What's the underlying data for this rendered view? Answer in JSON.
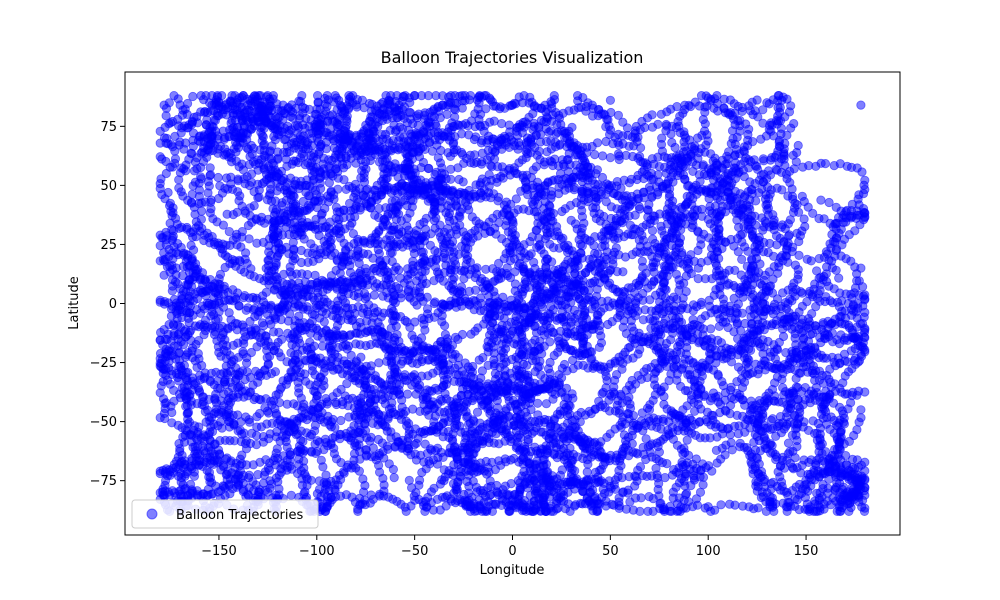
{
  "chart_data": {
    "type": "scatter",
    "title": "Balloon Trajectories Visualization",
    "xlabel": "Longitude",
    "ylabel": "Latitude",
    "xlim": [
      -198,
      198
    ],
    "ylim": [
      -98,
      98
    ],
    "xticks": [
      -150,
      -100,
      -50,
      0,
      50,
      100,
      150
    ],
    "yticks": [
      -75,
      -50,
      -25,
      0,
      25,
      50,
      75
    ],
    "grid": false,
    "legend": {
      "placement": "lower-left"
    },
    "colors": {
      "marker": "#0000ff",
      "marker_opacity": 0.5,
      "axes": "#000000",
      "background": "#ffffff"
    },
    "series": [
      {
        "name": "Balloon Trajectories",
        "trajectory_count": 140,
        "points_per_trajectory": 60,
        "x_range": [
          -180,
          180
        ],
        "y_range": [
          -88,
          88
        ],
        "sample_points": [
          [
            -178,
            84
          ],
          [
            -176,
            47
          ],
          [
            -177,
            27
          ],
          [
            -178,
            12
          ],
          [
            -176,
            -13
          ],
          [
            -177,
            -42
          ],
          [
            -178,
            -81
          ],
          [
            -150,
            85
          ],
          [
            -140,
            66
          ],
          [
            -120,
            30
          ],
          [
            -130,
            -5
          ],
          [
            -145,
            -50
          ],
          [
            -120,
            -83
          ],
          [
            -90,
            87
          ],
          [
            -70,
            70
          ],
          [
            -80,
            20
          ],
          [
            -60,
            -30
          ],
          [
            -75,
            -62
          ],
          [
            -95,
            -86
          ],
          [
            -50,
            88
          ],
          [
            -30,
            45
          ],
          [
            -40,
            0
          ],
          [
            -20,
            -40
          ],
          [
            -35,
            -75
          ],
          [
            -10,
            -85
          ],
          [
            0,
            84
          ],
          [
            20,
            60
          ],
          [
            15,
            10
          ],
          [
            30,
            -20
          ],
          [
            10,
            -55
          ],
          [
            40,
            -80
          ],
          [
            50,
            86
          ],
          [
            65,
            40
          ],
          [
            55,
            -5
          ],
          [
            70,
            -45
          ],
          [
            60,
            -84
          ],
          [
            100,
            87
          ],
          [
            110,
            55
          ],
          [
            95,
            15
          ],
          [
            105,
            -30
          ],
          [
            100,
            -86
          ],
          [
            130,
            85
          ],
          [
            145,
            60
          ],
          [
            140,
            20
          ],
          [
            150,
            -20
          ],
          [
            135,
            -65
          ],
          [
            155,
            -88
          ],
          [
            178,
            84
          ],
          [
            177,
            46
          ],
          [
            178,
            15
          ],
          [
            176,
            -10
          ],
          [
            178,
            -45
          ],
          [
            177,
            -82
          ]
        ]
      }
    ]
  }
}
